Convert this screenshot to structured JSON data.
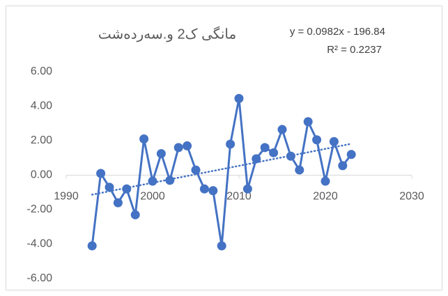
{
  "chart_data": {
    "type": "scatter-line",
    "title": "مانگی ک2 و.سەردەشت",
    "annotations": [
      "y = 0.0982x - 196.84",
      "R² = 0.2237"
    ],
    "series": [
      {
        "color": "#4472c4",
        "x": [
          1993,
          1994,
          1995,
          1996,
          1997,
          1998,
          1999,
          2000,
          2001,
          2002,
          2003,
          2004,
          2005,
          2006,
          2007,
          2008,
          2009,
          2010,
          2011,
          2012,
          2013,
          2014,
          2015,
          2016,
          2017,
          2018,
          2019,
          2020,
          2021,
          2022,
          2023
        ],
        "values": [
          -4.1,
          0.1,
          -0.7,
          -1.6,
          -0.8,
          -2.3,
          2.1,
          -0.35,
          1.25,
          -0.3,
          1.6,
          1.7,
          0.3,
          -0.8,
          -0.9,
          -4.1,
          1.8,
          4.45,
          -0.8,
          0.95,
          1.6,
          1.3,
          2.65,
          1.1,
          0.3,
          3.1,
          2.05,
          -0.35,
          1.95,
          0.55,
          1.2
        ]
      }
    ],
    "trendline": {
      "color": "#4472c4",
      "x": [
        1993,
        2023
      ],
      "values": [
        -1.13,
        1.82
      ]
    },
    "xlim": [
      1990,
      2030
    ],
    "xticks": [
      1990,
      2000,
      2010,
      2020,
      2030
    ],
    "ylim": [
      -6,
      6
    ],
    "yticks": [
      {
        "value": -6,
        "label": "-6.00"
      },
      {
        "value": -4,
        "label": "-4.00"
      },
      {
        "value": -2,
        "label": "-2.00"
      },
      {
        "value": 0,
        "label": "0.00"
      },
      {
        "value": 2,
        "label": "2.00"
      },
      {
        "value": 4,
        "label": "4.00"
      },
      {
        "value": 6,
        "label": "6.00"
      }
    ],
    "grid": false
  }
}
